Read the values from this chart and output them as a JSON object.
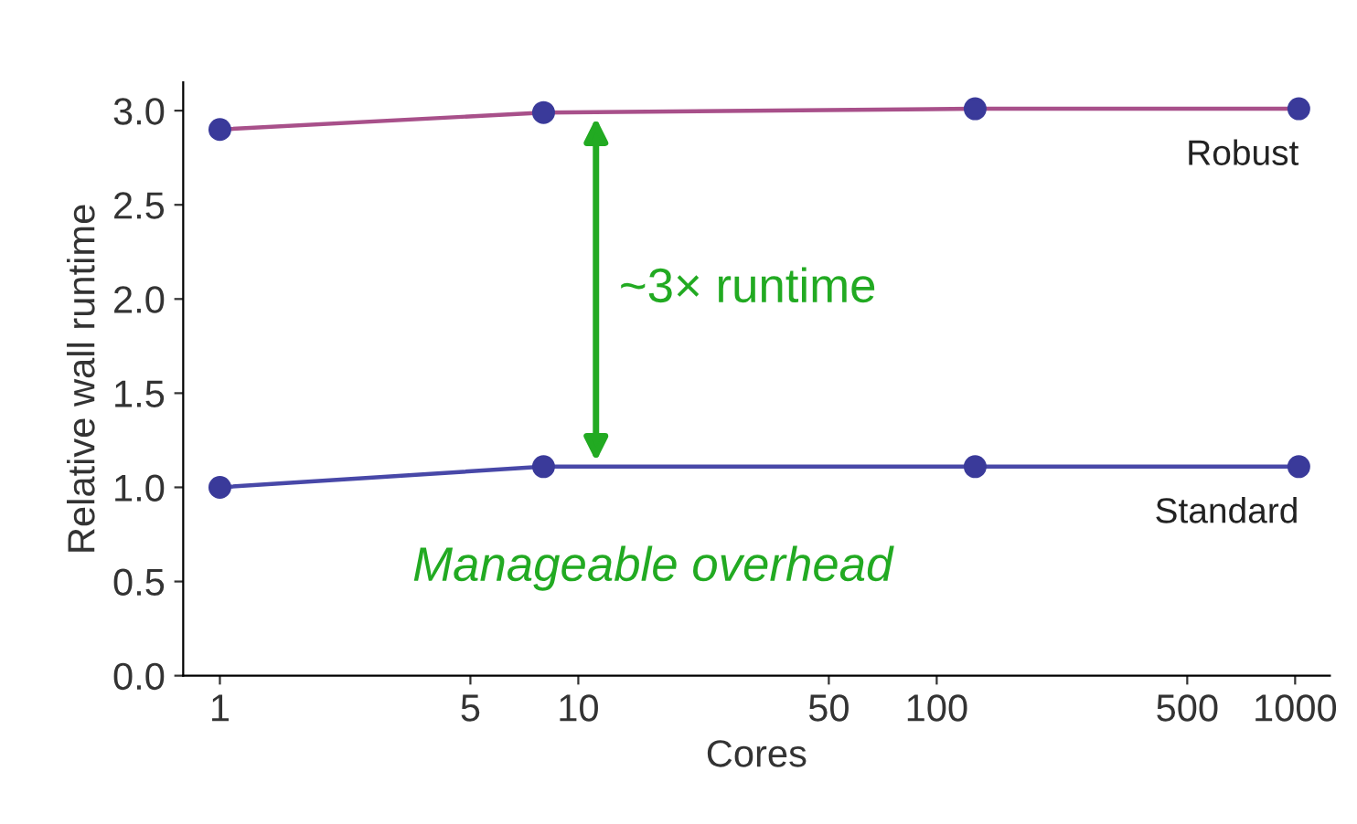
{
  "chart_data": {
    "type": "line",
    "xlabel": "Cores",
    "ylabel": "Relative wall runtime",
    "x": [
      1,
      8,
      128,
      1024
    ],
    "series": [
      {
        "name": "Robust",
        "color": "#a8508a",
        "values": [
          2.9,
          2.99,
          3.01,
          3.01
        ]
      },
      {
        "name": "Standard",
        "color": "#4848a8",
        "values": [
          1.0,
          1.11,
          1.11,
          1.11
        ]
      }
    ],
    "log": "x",
    "xlim": [
      0.79,
      1250
    ],
    "ylim": [
      0,
      3.15
    ],
    "xticks": [
      1,
      5,
      10,
      50,
      100,
      500,
      1000
    ],
    "yticks": [
      {
        "value": 0,
        "label": "0.0"
      },
      {
        "value": 0.5,
        "label": "0.5"
      },
      {
        "value": 1,
        "label": "1.0"
      },
      {
        "value": 1.5,
        "label": "1.5"
      },
      {
        "value": 2,
        "label": "2.0"
      },
      {
        "value": 2.5,
        "label": "2.5"
      },
      {
        "value": 3,
        "label": "3.0"
      }
    ],
    "marker": "circle",
    "line_style": "solid",
    "grid": false,
    "legend": false,
    "annotations": [
      "~3× runtime",
      "Manageable overhead"
    ]
  }
}
